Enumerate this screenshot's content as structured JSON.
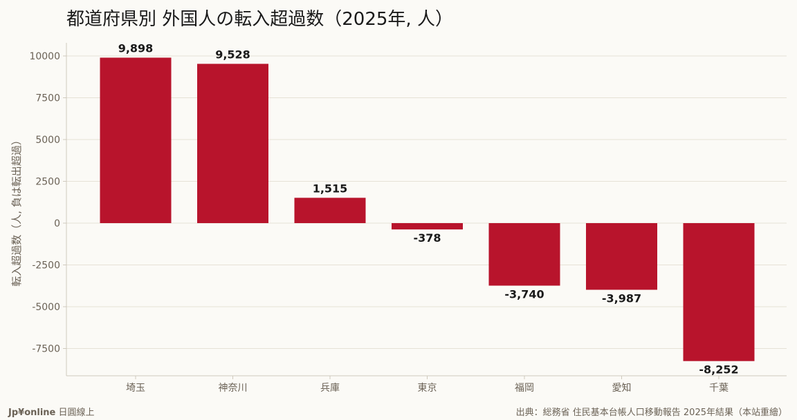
{
  "chart_data": {
    "type": "bar",
    "title": "都道府県別 外国人の転入超過数（2025年, 人）",
    "ylabel": "転入超過数（人, 負は転出超過）",
    "xlabel": "",
    "categories": [
      "埼玉",
      "神奈川",
      "兵庫",
      "東京",
      "福岡",
      "愛知",
      "千葉"
    ],
    "values": [
      9898,
      9528,
      1515,
      -378,
      -3740,
      -3987,
      -8252
    ],
    "value_labels": [
      "9,898",
      "9,528",
      "1,515",
      "-378",
      "-3,740",
      "-3,987",
      "-8,252"
    ],
    "yticks": [
      -7500,
      -5000,
      -2500,
      0,
      2500,
      5000,
      7500,
      10000
    ],
    "ytick_labels": [
      "-7500",
      "-5000",
      "-2500",
      "0",
      "2500",
      "5000",
      "7500",
      "10000"
    ],
    "ylim": [
      -9000,
      10800
    ],
    "grid": true,
    "bar_color": "#b8142c"
  },
  "footer": {
    "brand": "Jp¥online",
    "brand_suffix": "日圓線上",
    "source": "出典：総務省 住民基本台帳人口移動報告 2025年結果（本站重繪）"
  }
}
